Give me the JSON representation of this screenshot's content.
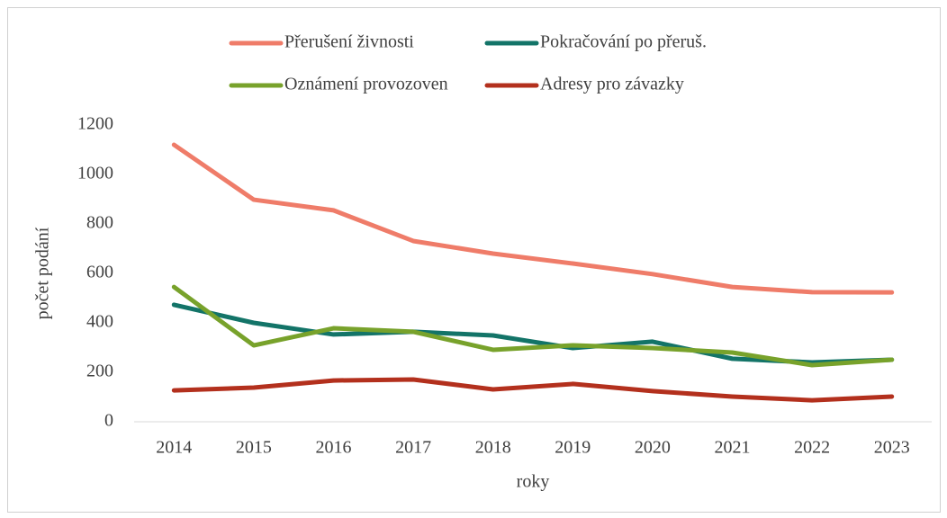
{
  "chart_data": {
    "type": "line",
    "x_label": "roky",
    "y_label": "počet podání",
    "categories": [
      "2014",
      "2015",
      "2016",
      "2017",
      "2018",
      "2019",
      "2020",
      "2021",
      "2022",
      "2023"
    ],
    "series": [
      {
        "name": "Přerušení živnosti",
        "color": "#ef7c69",
        "values": [
          1120,
          898,
          855,
          731,
          680,
          640,
          597,
          545,
          524,
          523
        ]
      },
      {
        "name": "Pokračování po přeruš.",
        "color": "#137468",
        "values": [
          473,
          400,
          353,
          364,
          349,
          298,
          324,
          255,
          240,
          251
        ]
      },
      {
        "name": "Oznámení provozoven",
        "color": "#78a22b",
        "values": [
          545,
          309,
          378,
          364,
          291,
          309,
          298,
          280,
          229,
          251
        ]
      },
      {
        "name": "Adresy pro závazky",
        "color": "#b3301d",
        "values": [
          127,
          138,
          167,
          171,
          131,
          153,
          124,
          102,
          87,
          102
        ]
      }
    ],
    "ylim": [
      0,
      1200
    ],
    "yticks": [
      0,
      200,
      400,
      600,
      800,
      1000,
      1200
    ],
    "grid": false,
    "legend": "top"
  }
}
